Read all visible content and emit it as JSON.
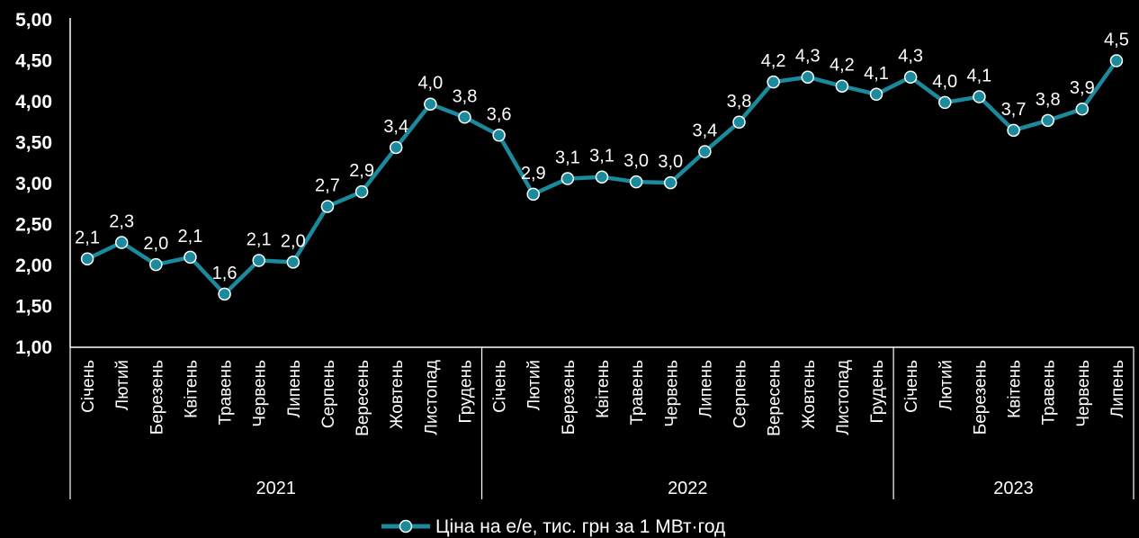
{
  "chart_data": {
    "type": "line",
    "ylim": [
      1.0,
      5.0
    ],
    "yticks": [
      "1,00",
      "1,50",
      "2,00",
      "2,50",
      "3,00",
      "3,50",
      "4,00",
      "4,50",
      "5,00"
    ],
    "ytick_values": [
      1.0,
      1.5,
      2.0,
      2.5,
      3.0,
      3.5,
      4.0,
      4.5,
      5.0
    ],
    "categories": [
      "Січень",
      "Лютий",
      "Березень",
      "Квітень",
      "Травень",
      "Червень",
      "Липень",
      "Серпень",
      "Вересень",
      "Жовтень",
      "Листопад",
      "Грудень",
      "Січень",
      "Лютий",
      "Березень",
      "Квітень",
      "Травень",
      "Червень",
      "Липень",
      "Серпень",
      "Вересень",
      "Жовтень",
      "Листопад",
      "Грудень",
      "Січень",
      "Лютий",
      "Березень",
      "Квітень",
      "Травень",
      "Червень",
      "Липень"
    ],
    "year_groups": [
      {
        "label": "2021",
        "count": 12
      },
      {
        "label": "2022",
        "count": 12
      },
      {
        "label": "2023",
        "count": 7
      }
    ],
    "series": [
      {
        "name": "Ціна на е/е, тис. грн за 1 МВт·год",
        "color": "#1a8a9c",
        "values": [
          2.08,
          2.28,
          2.01,
          2.1,
          1.65,
          2.06,
          2.04,
          2.72,
          2.9,
          3.44,
          3.97,
          3.81,
          3.59,
          2.87,
          3.06,
          3.08,
          3.02,
          3.01,
          3.39,
          3.75,
          4.24,
          4.3,
          4.19,
          4.09,
          4.3,
          3.99,
          4.06,
          3.65,
          3.77,
          3.91,
          4.5
        ],
        "labels": [
          "2,1",
          "2,3",
          "2,0",
          "2,1",
          "1,6",
          "2,1",
          "2,0",
          "2,7",
          "2,9",
          "3,4",
          "4,0",
          "3,8",
          "3,6",
          "2,9",
          "3,1",
          "3,1",
          "3,0",
          "3,0",
          "3,4",
          "3,8",
          "4,2",
          "4,3",
          "4,2",
          "4,1",
          "4,3",
          "4,0",
          "4,1",
          "3,7",
          "3,8",
          "3,9",
          "4,5"
        ]
      }
    ],
    "legend": {
      "position": "bottom",
      "label": "Ціна на е/е, тис. грн за 1 МВт·год"
    },
    "grid": false
  }
}
